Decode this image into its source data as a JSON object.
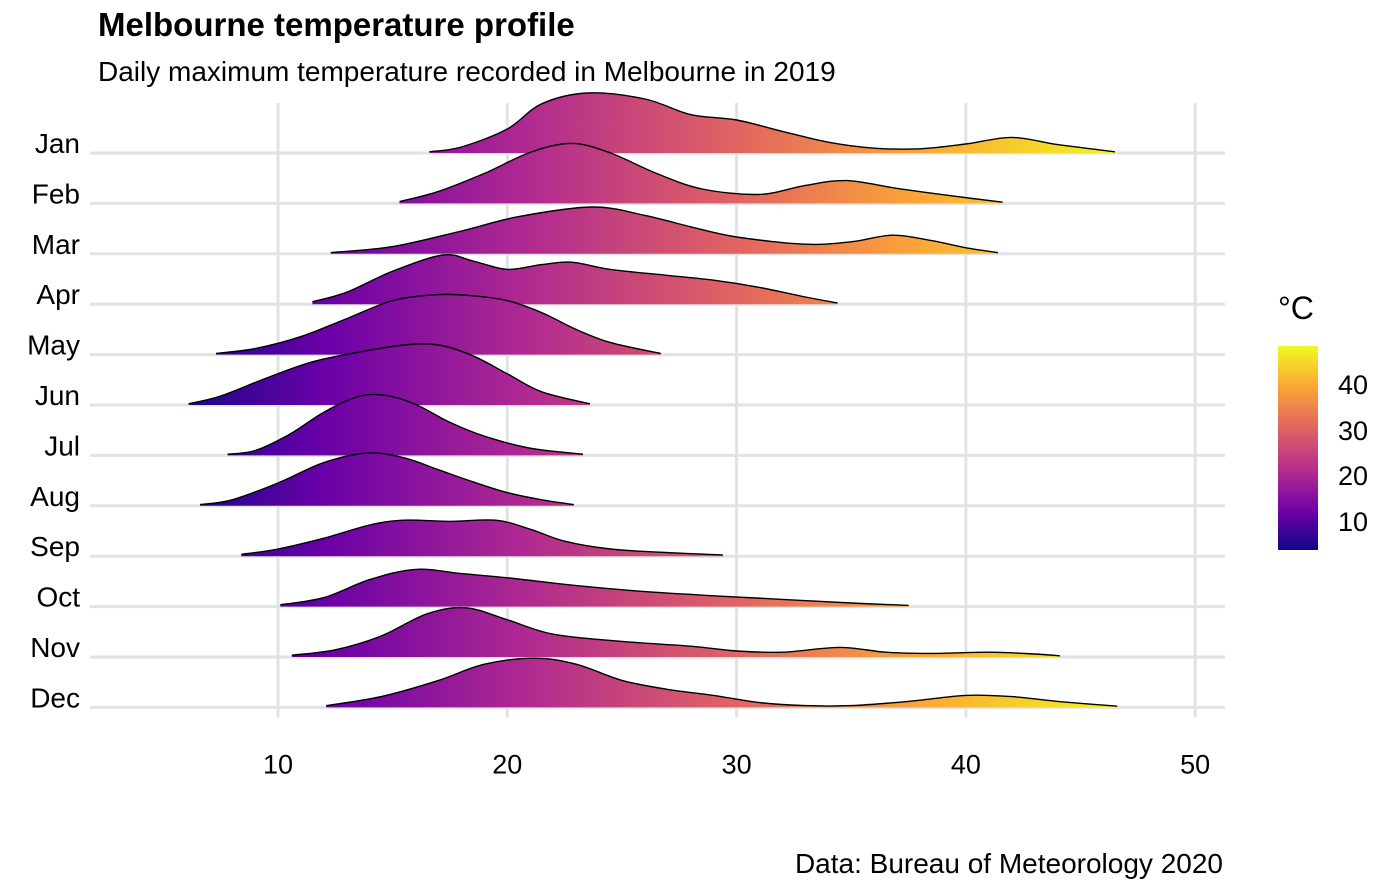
{
  "title": "Melbourne temperature profile",
  "subtitle": "Daily maximum temperature recorded in Melbourne in 2019",
  "caption": "Data: Bureau of Meteorology 2020",
  "colors": {
    "grid": "#e2e2e2",
    "outline": "#000000",
    "palette": "plasma"
  },
  "legend": {
    "title": "°C",
    "ticks": [
      "10",
      "20",
      "30",
      "40"
    ],
    "placement": "right"
  },
  "chart_data": {
    "type": "ridgeline",
    "title": "Melbourne temperature profile",
    "subtitle": "Daily maximum temperature recorded in Melbourne in 2019",
    "xlabel": "",
    "ylabel": "",
    "xlim": [
      1.8,
      51.3
    ],
    "x_ticks": [
      10,
      20,
      30,
      40,
      50
    ],
    "grid": true,
    "fill": "gradient by temperature (°C), plasma palette, range ~5–49",
    "series": [
      {
        "month": "Jan",
        "range": [
          16.6,
          46.5
        ],
        "points": [
          [
            16.6,
            0.02
          ],
          [
            18,
            0.1
          ],
          [
            20,
            0.4
          ],
          [
            21.5,
            0.82
          ],
          [
            23.5,
            1.0
          ],
          [
            26,
            0.9
          ],
          [
            28,
            0.64
          ],
          [
            30,
            0.55
          ],
          [
            32,
            0.36
          ],
          [
            34,
            0.18
          ],
          [
            36,
            0.08
          ],
          [
            38,
            0.07
          ],
          [
            40,
            0.15
          ],
          [
            42,
            0.26
          ],
          [
            44,
            0.14
          ],
          [
            46.5,
            0.02
          ]
        ]
      },
      {
        "month": "Feb",
        "range": [
          15.3,
          41.6
        ],
        "points": [
          [
            15.3,
            0.03
          ],
          [
            17,
            0.2
          ],
          [
            19,
            0.5
          ],
          [
            21,
            0.85
          ],
          [
            22.8,
            1.0
          ],
          [
            24.5,
            0.84
          ],
          [
            26.5,
            0.5
          ],
          [
            28.5,
            0.24
          ],
          [
            31,
            0.15
          ],
          [
            33,
            0.3
          ],
          [
            34.8,
            0.38
          ],
          [
            37,
            0.25
          ],
          [
            39.5,
            0.12
          ],
          [
            41.6,
            0.02
          ]
        ]
      },
      {
        "month": "Mar",
        "range": [
          12.3,
          41.4
        ],
        "points": [
          [
            12.3,
            0.02
          ],
          [
            15,
            0.12
          ],
          [
            18,
            0.38
          ],
          [
            20.5,
            0.62
          ],
          [
            23.7,
            0.78
          ],
          [
            26,
            0.64
          ],
          [
            28,
            0.45
          ],
          [
            30,
            0.28
          ],
          [
            33,
            0.16
          ],
          [
            35,
            0.2
          ],
          [
            36.8,
            0.31
          ],
          [
            38.5,
            0.22
          ],
          [
            40,
            0.1
          ],
          [
            41.4,
            0.02
          ]
        ]
      },
      {
        "month": "Apr",
        "range": [
          11.5,
          34.4
        ],
        "points": [
          [
            11.5,
            0.04
          ],
          [
            13,
            0.2
          ],
          [
            15,
            0.55
          ],
          [
            17.2,
            0.82
          ],
          [
            18.5,
            0.72
          ],
          [
            20,
            0.58
          ],
          [
            21.5,
            0.66
          ],
          [
            22.8,
            0.7
          ],
          [
            24.5,
            0.58
          ],
          [
            27,
            0.48
          ],
          [
            29,
            0.4
          ],
          [
            31,
            0.28
          ],
          [
            33,
            0.12
          ],
          [
            34.4,
            0.02
          ]
        ]
      },
      {
        "month": "May",
        "range": [
          7.3,
          26.7
        ],
        "points": [
          [
            7.3,
            0.02
          ],
          [
            9,
            0.1
          ],
          [
            11,
            0.3
          ],
          [
            13,
            0.6
          ],
          [
            15,
            0.9
          ],
          [
            17,
            1.0
          ],
          [
            18.5,
            0.98
          ],
          [
            20,
            0.9
          ],
          [
            21.5,
            0.7
          ],
          [
            23,
            0.42
          ],
          [
            24.5,
            0.2
          ],
          [
            26.7,
            0.02
          ]
        ]
      },
      {
        "month": "Jun",
        "range": [
          6.1,
          23.6
        ],
        "points": [
          [
            6.1,
            0.02
          ],
          [
            7.5,
            0.15
          ],
          [
            9.5,
            0.45
          ],
          [
            11.5,
            0.72
          ],
          [
            13.5,
            0.88
          ],
          [
            15.5,
            1.0
          ],
          [
            17,
            1.0
          ],
          [
            18.5,
            0.82
          ],
          [
            20,
            0.52
          ],
          [
            21.5,
            0.22
          ],
          [
            23.6,
            0.02
          ]
        ]
      },
      {
        "month": "Jul",
        "range": [
          7.8,
          23.3
        ],
        "points": [
          [
            7.8,
            0.02
          ],
          [
            9,
            0.08
          ],
          [
            10.5,
            0.35
          ],
          [
            12,
            0.72
          ],
          [
            13.5,
            0.98
          ],
          [
            14.7,
            1.0
          ],
          [
            16,
            0.85
          ],
          [
            17.5,
            0.55
          ],
          [
            19,
            0.32
          ],
          [
            21,
            0.12
          ],
          [
            23.3,
            0.02
          ]
        ]
      },
      {
        "month": "Aug",
        "range": [
          6.6,
          22.9
        ],
        "points": [
          [
            6.6,
            0.02
          ],
          [
            8,
            0.1
          ],
          [
            10,
            0.38
          ],
          [
            12,
            0.72
          ],
          [
            13.9,
            0.88
          ],
          [
            15.5,
            0.8
          ],
          [
            17,
            0.6
          ],
          [
            18.5,
            0.4
          ],
          [
            20,
            0.22
          ],
          [
            21.5,
            0.1
          ],
          [
            22.9,
            0.02
          ]
        ]
      },
      {
        "month": "Sep",
        "range": [
          8.4,
          29.4
        ],
        "points": [
          [
            8.4,
            0.03
          ],
          [
            10,
            0.12
          ],
          [
            12,
            0.3
          ],
          [
            14,
            0.52
          ],
          [
            15.5,
            0.6
          ],
          [
            17.5,
            0.58
          ],
          [
            19.5,
            0.6
          ],
          [
            21,
            0.45
          ],
          [
            22.5,
            0.25
          ],
          [
            24.5,
            0.12
          ],
          [
            27,
            0.06
          ],
          [
            29.4,
            0.02
          ]
        ]
      },
      {
        "month": "Oct",
        "range": [
          10.1,
          37.5
        ],
        "points": [
          [
            10.1,
            0.03
          ],
          [
            12,
            0.15
          ],
          [
            14,
            0.45
          ],
          [
            16,
            0.62
          ],
          [
            18,
            0.55
          ],
          [
            20,
            0.48
          ],
          [
            23,
            0.35
          ],
          [
            26,
            0.25
          ],
          [
            29,
            0.18
          ],
          [
            32,
            0.12
          ],
          [
            35,
            0.06
          ],
          [
            37.5,
            0.02
          ]
        ]
      },
      {
        "month": "Nov",
        "range": [
          10.6,
          44.1
        ],
        "points": [
          [
            10.6,
            0.03
          ],
          [
            12.5,
            0.12
          ],
          [
            14.5,
            0.35
          ],
          [
            16.5,
            0.72
          ],
          [
            18.2,
            0.82
          ],
          [
            20,
            0.62
          ],
          [
            22,
            0.38
          ],
          [
            25,
            0.26
          ],
          [
            28,
            0.18
          ],
          [
            30,
            0.1
          ],
          [
            32,
            0.08
          ],
          [
            34.5,
            0.16
          ],
          [
            36.5,
            0.08
          ],
          [
            38.5,
            0.06
          ],
          [
            41,
            0.08
          ],
          [
            43,
            0.05
          ],
          [
            44.1,
            0.02
          ]
        ]
      },
      {
        "month": "Dec",
        "range": [
          12.1,
          46.6
        ],
        "points": [
          [
            12.1,
            0.03
          ],
          [
            14.5,
            0.18
          ],
          [
            17,
            0.45
          ],
          [
            19,
            0.72
          ],
          [
            21.2,
            0.82
          ],
          [
            23,
            0.72
          ],
          [
            25,
            0.45
          ],
          [
            27,
            0.3
          ],
          [
            29,
            0.2
          ],
          [
            31,
            0.08
          ],
          [
            33,
            0.03
          ],
          [
            35,
            0.03
          ],
          [
            37.5,
            0.1
          ],
          [
            40,
            0.2
          ],
          [
            42,
            0.18
          ],
          [
            44,
            0.1
          ],
          [
            46.6,
            0.02
          ]
        ]
      }
    ]
  }
}
